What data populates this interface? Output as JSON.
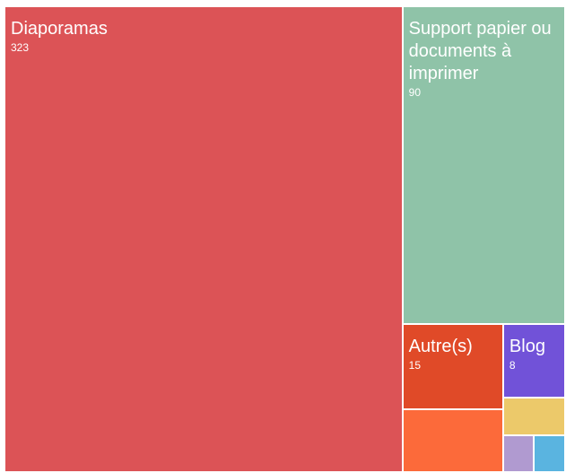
{
  "chart_data": {
    "type": "treemap",
    "categories": [
      "Diaporamas",
      "Support papier ou documents à imprimer",
      "Autre(s)",
      null,
      "Blog",
      null,
      null,
      null
    ],
    "values": [
      323,
      90,
      15,
      11,
      8,
      4,
      2,
      2
    ],
    "colors": [
      "#dc5356",
      "#8fc3a8",
      "#e04a28",
      "#fc6a3a",
      "#7152d8",
      "#ecc96a",
      "#b09ad0",
      "#5ab4e0"
    ]
  }
}
